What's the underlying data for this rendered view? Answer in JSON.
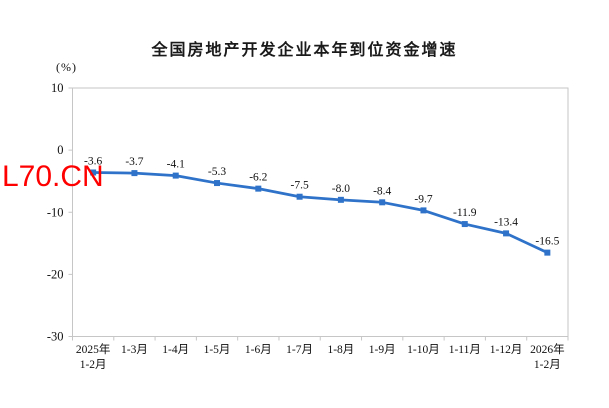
{
  "watermark": {
    "text": "L70.CN",
    "color": "#FF0000"
  },
  "chart_data": {
    "type": "line",
    "title": "全国房地产开发企业本年到位资金增速",
    "unit_label": "(%)",
    "categories": [
      "2025年\n1-2月",
      "1-3月",
      "1-4月",
      "1-5月",
      "1-6月",
      "1-7月",
      "1-8月",
      "1-9月",
      "1-10月",
      "1-11月",
      "1-12月",
      "2026年\n1-2月"
    ],
    "values": [
      -3.6,
      -3.7,
      -4.1,
      -5.3,
      -6.2,
      -7.5,
      -8.0,
      -8.4,
      -9.7,
      -11.9,
      -13.4,
      -16.5
    ],
    "point_labels": [
      "-3.6",
      "-3.7",
      "-4.1",
      "-5.3",
      "-6.2",
      "-7.5",
      "-8.0",
      "-8.4",
      "-9.7",
      "-11.9",
      "-13.4",
      "-16.5"
    ],
    "xlabel": "",
    "ylabel": "(%)",
    "ylim": [
      -30,
      10
    ],
    "yticks": [
      10,
      0,
      -10,
      -20,
      -30
    ],
    "grid": false,
    "legend": "none",
    "marker": "square",
    "line_color": "#2E73C9",
    "axis_color": "#C6C6C6",
    "text_color": "#111111"
  }
}
